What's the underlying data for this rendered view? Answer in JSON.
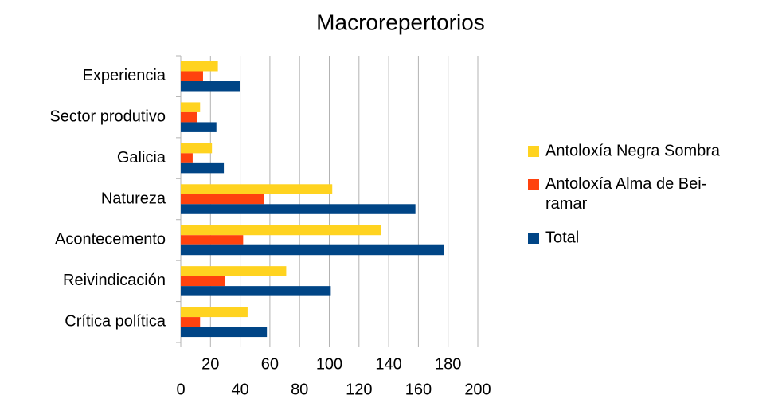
{
  "chart_data": {
    "type": "hbar",
    "title": "Macrorepertorios",
    "categories": [
      "Experiencia",
      "Sector produtivo",
      "Galicia",
      "Natureza",
      "Acontecemento",
      "Reivindicación",
      "Crítica política"
    ],
    "series": [
      {
        "name": "Antoloxía Negra Sombra",
        "color": "#ffd320",
        "values": [
          25,
          13,
          21,
          102,
          135,
          71,
          45
        ]
      },
      {
        "name": "Antoloxía Alma de Bei-ramar",
        "color": "#ff420e",
        "values": [
          15,
          11,
          8,
          56,
          42,
          30,
          13
        ]
      },
      {
        "name": "Total",
        "color": "#004586",
        "values": [
          40,
          24,
          29,
          158,
          177,
          101,
          58
        ]
      }
    ],
    "xlim": [
      0,
      200
    ],
    "xticks": [
      0,
      20,
      40,
      60,
      80,
      100,
      120,
      140,
      160,
      180,
      200
    ],
    "grid": true,
    "legend": "right"
  }
}
